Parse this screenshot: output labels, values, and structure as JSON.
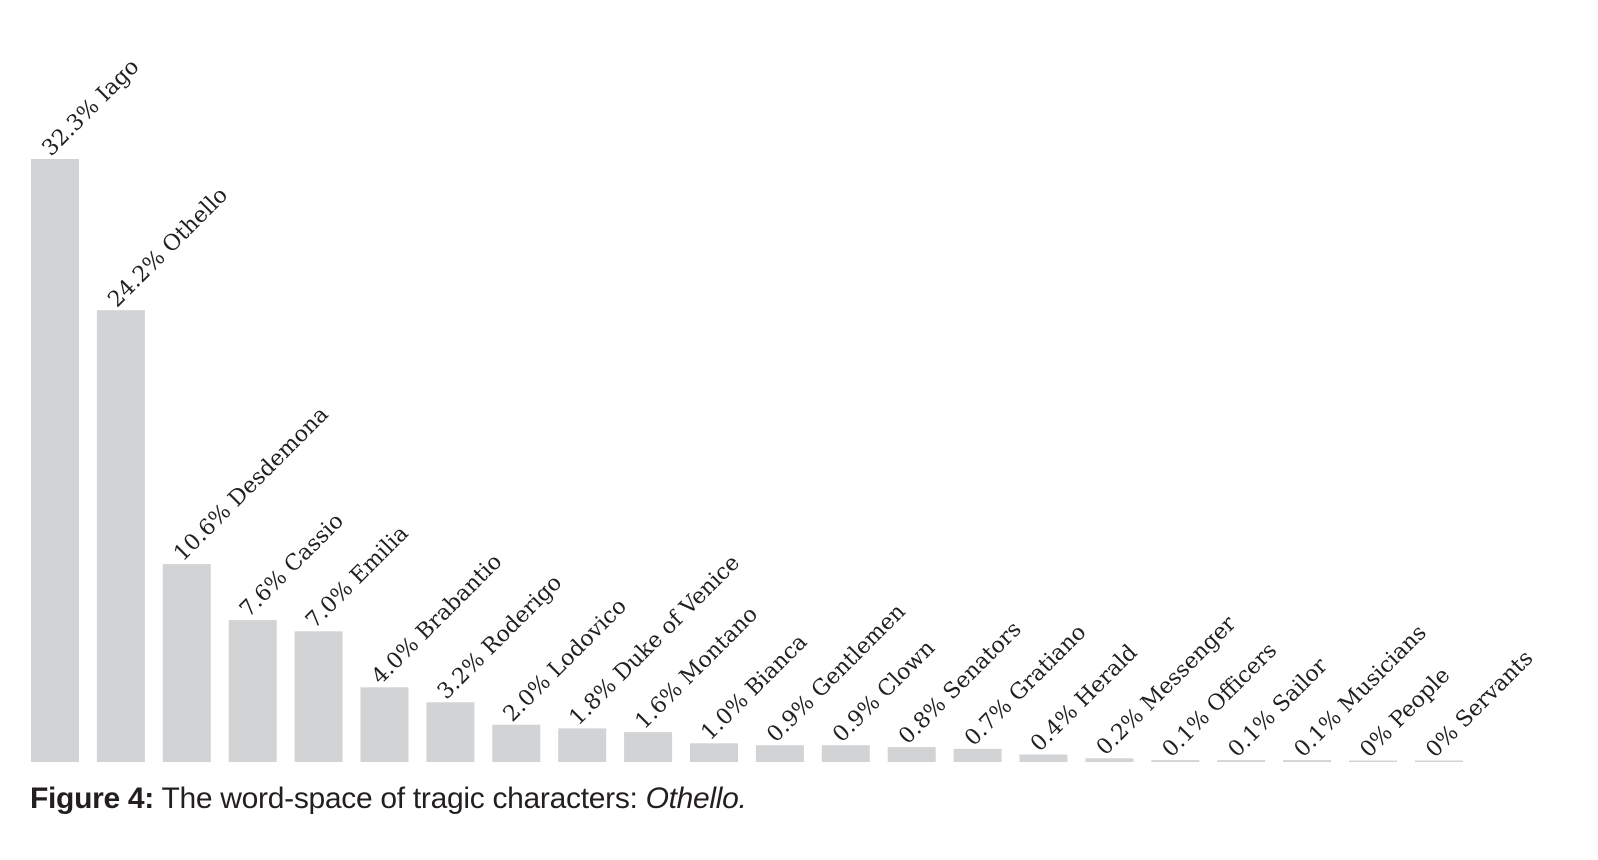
{
  "chart_data": {
    "type": "bar",
    "categories": [
      "Iago",
      "Othello",
      "Desdemona",
      "Cassio",
      "Emilia",
      "Brabantio",
      "Roderigo",
      "Lodovico",
      "Duke of Venice",
      "Montano",
      "Bianca",
      "Gentlemen",
      "Clown",
      "Senators",
      "Gratiano",
      "Herald",
      "Messenger",
      "Officers",
      "Sailor",
      "Musicians",
      "People",
      "Servants"
    ],
    "values": [
      32.3,
      24.2,
      10.6,
      7.6,
      7.0,
      4.0,
      3.2,
      2.0,
      1.8,
      1.6,
      1.0,
      0.9,
      0.9,
      0.8,
      0.7,
      0.4,
      0.2,
      0.1,
      0.1,
      0.1,
      0,
      0
    ],
    "labels": [
      "32.3% Iago",
      "24.2% Othello",
      "10.6% Desdemona",
      "7.6% Cassio",
      "7.0% Emilia",
      "4.0% Brabantio",
      "3.2% Roderigo",
      "2.0% Lodovico",
      "1.8% Duke of Venice",
      "1.6% Montano",
      "1.0% Bianca",
      "0.9% Gentlemen",
      "0.9% Clown",
      "0.8% Senators",
      "0.7% Gratiano",
      "0.4% Herald",
      "0.2% Messenger",
      "0.1% Officers",
      "0.1% Sailor",
      "0.1% Musicians",
      "0% People",
      "0% Servants"
    ],
    "ylim": [
      0,
      32.3
    ],
    "grid": false,
    "bar_color": "#d2d3d5",
    "label_color": "#231f20"
  },
  "caption": {
    "number": "Figure 4:",
    "text": " The word-space of tragic characters: ",
    "title": "Othello."
  }
}
